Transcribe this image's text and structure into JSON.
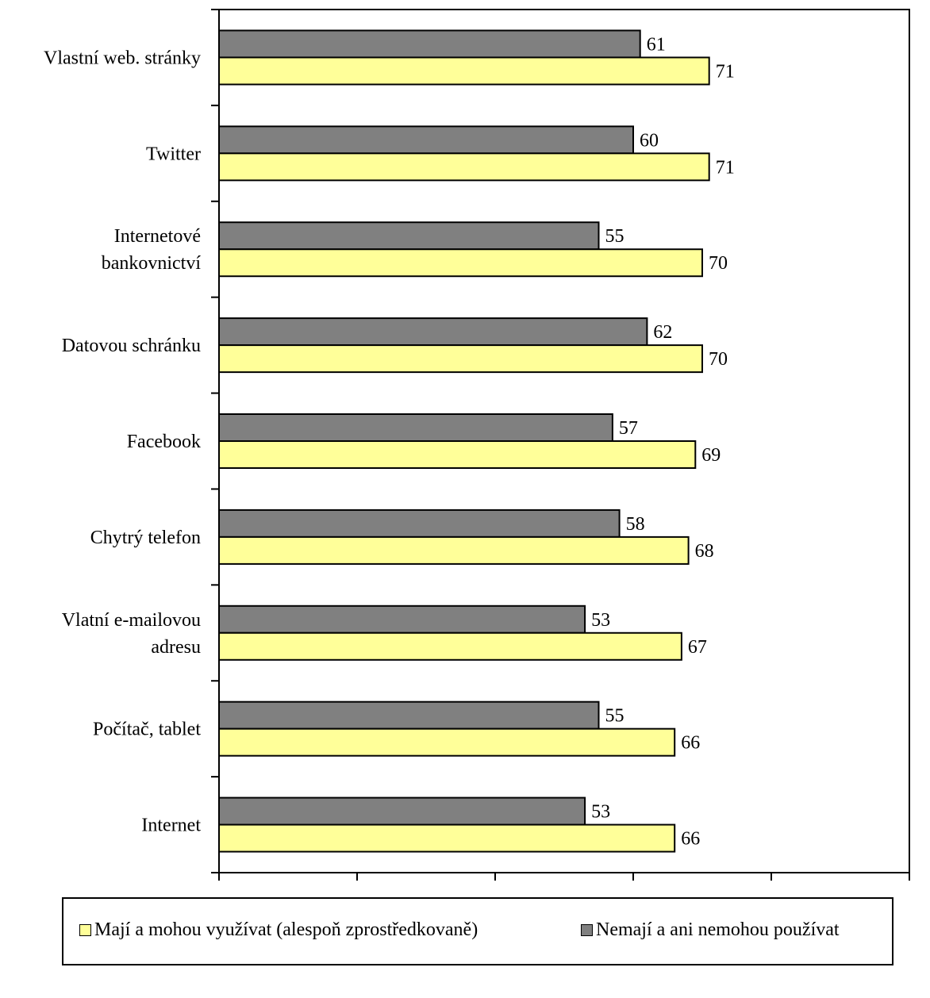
{
  "chart_data": {
    "type": "bar",
    "orientation": "horizontal",
    "categories": [
      [
        "Vlastní web. stránky"
      ],
      [
        "Twitter"
      ],
      [
        "Internetové",
        "bankovnictví"
      ],
      [
        "Datovou schránku"
      ],
      [
        "Facebook"
      ],
      [
        "Chytrý telefon"
      ],
      [
        "Vlatní e-mailovou",
        "adresu"
      ],
      [
        "Počítač, tablet"
      ],
      [
        "Internet"
      ]
    ],
    "series": [
      {
        "name": "Nemají a ani nemohou používat",
        "color": "#808080",
        "values": [
          61,
          60,
          55,
          62,
          57,
          58,
          53,
          55,
          53
        ]
      },
      {
        "name": "Mají a mohou využívat (alespoň zprostředkovaně)",
        "color": "#FFFF99",
        "values": [
          71,
          71,
          70,
          70,
          69,
          68,
          67,
          66,
          66
        ]
      }
    ],
    "xlim": [
      0,
      100
    ],
    "xticks": [
      "0",
      "20",
      "40",
      "60",
      "80",
      "100"
    ],
    "data_labels": true,
    "grid": false,
    "legend_position": "bottom"
  },
  "legend": {
    "items": [
      {
        "label": "Mají a mohou využívat (alespoň zprostředkovaně)",
        "color": "#FFFF99"
      },
      {
        "label": "Nemají a ani nemohou používat",
        "color": "#808080"
      }
    ]
  }
}
